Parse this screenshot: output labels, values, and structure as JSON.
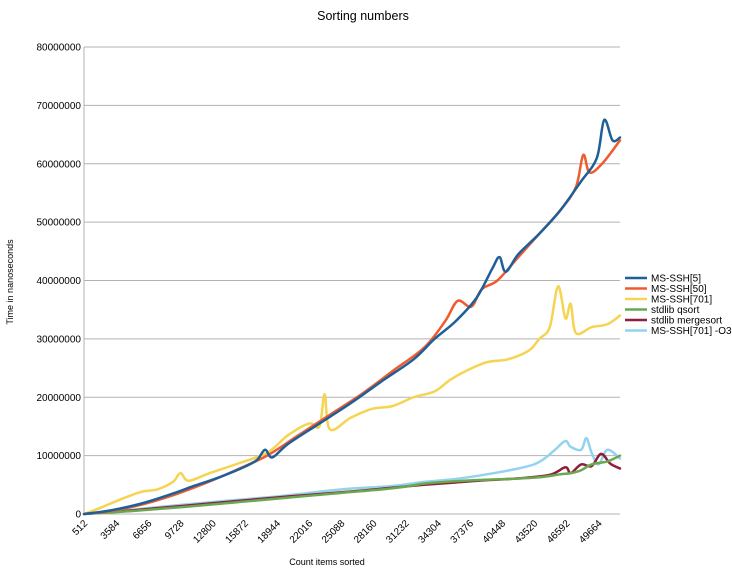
{
  "chart_data": {
    "type": "line",
    "title": "Sorting  numbers",
    "xlabel": "Count items sorted",
    "ylabel": "Time in nanoseconds",
    "ylim": [
      0,
      80000000
    ],
    "xlim": [
      512,
      51712
    ],
    "y_ticks": [
      0,
      10000000,
      20000000,
      30000000,
      40000000,
      50000000,
      60000000,
      70000000,
      80000000
    ],
    "y_tick_labels": [
      "0",
      "10000000",
      "20000000",
      "30000000",
      "40000000",
      "50000000",
      "60000000",
      "70000000",
      "80000000"
    ],
    "x_tick_labels": [
      "512",
      "3584",
      "6656",
      "9728",
      "12800",
      "15872",
      "18944",
      "22016",
      "25088",
      "28160",
      "31232",
      "34304",
      "37376",
      "40448",
      "43520",
      "46592",
      "49664"
    ],
    "grid": "horizontal",
    "legend_position": "right",
    "series": [
      {
        "name": "MS-SSH[5]",
        "color": "#1f5f99",
        "points": [
          [
            512,
            0
          ],
          [
            3000,
            600000
          ],
          [
            6000,
            1800000
          ],
          [
            9000,
            3500000
          ],
          [
            11000,
            4800000
          ],
          [
            13000,
            6000000
          ],
          [
            15500,
            7800000
          ],
          [
            17000,
            9200000
          ],
          [
            17800,
            11000000
          ],
          [
            18500,
            9700000
          ],
          [
            20000,
            12000000
          ],
          [
            23000,
            15500000
          ],
          [
            26000,
            19000000
          ],
          [
            29000,
            22800000
          ],
          [
            32000,
            26500000
          ],
          [
            34000,
            30000000
          ],
          [
            36000,
            33000000
          ],
          [
            38000,
            37000000
          ],
          [
            39500,
            42000000
          ],
          [
            40200,
            44000000
          ],
          [
            40800,
            41500000
          ],
          [
            42000,
            44500000
          ],
          [
            44000,
            48000000
          ],
          [
            46000,
            52000000
          ],
          [
            48000,
            57000000
          ],
          [
            49500,
            61000000
          ],
          [
            50200,
            67500000
          ],
          [
            51000,
            64000000
          ],
          [
            51712,
            64500000
          ]
        ]
      },
      {
        "name": "MS-SSH[50]",
        "color": "#f05b2e",
        "points": [
          [
            512,
            0
          ],
          [
            3000,
            500000
          ],
          [
            6000,
            1600000
          ],
          [
            9000,
            3200000
          ],
          [
            12000,
            5200000
          ],
          [
            15000,
            7500000
          ],
          [
            18000,
            10000000
          ],
          [
            21000,
            13500000
          ],
          [
            24000,
            17000000
          ],
          [
            27000,
            20500000
          ],
          [
            30000,
            24500000
          ],
          [
            33000,
            28500000
          ],
          [
            35000,
            33000000
          ],
          [
            36200,
            36500000
          ],
          [
            37500,
            35500000
          ],
          [
            38500,
            38500000
          ],
          [
            40000,
            40000000
          ],
          [
            42000,
            44000000
          ],
          [
            44000,
            48000000
          ],
          [
            46000,
            52000000
          ],
          [
            47500,
            56000000
          ],
          [
            48200,
            61500000
          ],
          [
            48800,
            58500000
          ],
          [
            50000,
            60000000
          ],
          [
            51712,
            64000000
          ]
        ]
      },
      {
        "name": "MS-SSH[701]",
        "color": "#f5d451",
        "points": [
          [
            512,
            0
          ],
          [
            2000,
            1000000
          ],
          [
            4000,
            2500000
          ],
          [
            6000,
            3800000
          ],
          [
            7500,
            4200000
          ],
          [
            9000,
            5500000
          ],
          [
            9728,
            7000000
          ],
          [
            10500,
            5700000
          ],
          [
            12500,
            7000000
          ],
          [
            15000,
            8500000
          ],
          [
            18000,
            10500000
          ],
          [
            20000,
            13500000
          ],
          [
            22000,
            15500000
          ],
          [
            23000,
            15000000
          ],
          [
            23500,
            20500000
          ],
          [
            24000,
            14500000
          ],
          [
            26000,
            16500000
          ],
          [
            28000,
            18000000
          ],
          [
            30000,
            18500000
          ],
          [
            32000,
            20000000
          ],
          [
            34000,
            21000000
          ],
          [
            35500,
            23000000
          ],
          [
            37000,
            24500000
          ],
          [
            39000,
            26000000
          ],
          [
            41000,
            26500000
          ],
          [
            43000,
            28000000
          ],
          [
            44000,
            30000000
          ],
          [
            45000,
            32000000
          ],
          [
            45800,
            39000000
          ],
          [
            46500,
            33500000
          ],
          [
            47000,
            36000000
          ],
          [
            47500,
            31000000
          ],
          [
            49000,
            32000000
          ],
          [
            50500,
            32500000
          ],
          [
            51712,
            34000000
          ]
        ]
      },
      {
        "name": "stdlib qsort",
        "color": "#6aa84f",
        "points": [
          [
            512,
            0
          ],
          [
            5000,
            500000
          ],
          [
            10000,
            1200000
          ],
          [
            15000,
            2000000
          ],
          [
            20000,
            2800000
          ],
          [
            25000,
            3600000
          ],
          [
            30000,
            4400000
          ],
          [
            33000,
            5200000
          ],
          [
            35000,
            5500000
          ],
          [
            38000,
            5800000
          ],
          [
            41000,
            6000000
          ],
          [
            44000,
            6300000
          ],
          [
            46000,
            6800000
          ],
          [
            47000,
            7000000
          ],
          [
            48000,
            7500000
          ],
          [
            49000,
            8500000
          ],
          [
            50500,
            9000000
          ],
          [
            51712,
            10000000
          ]
        ]
      },
      {
        "name": "stdlib mergesort",
        "color": "#8e1f3c",
        "points": [
          [
            512,
            0
          ],
          [
            5000,
            600000
          ],
          [
            10000,
            1400000
          ],
          [
            15000,
            2200000
          ],
          [
            20000,
            3000000
          ],
          [
            25000,
            3700000
          ],
          [
            30000,
            4500000
          ],
          [
            33000,
            5000000
          ],
          [
            36000,
            5400000
          ],
          [
            39000,
            5800000
          ],
          [
            42000,
            6100000
          ],
          [
            45000,
            6700000
          ],
          [
            46500,
            8000000
          ],
          [
            47000,
            7000000
          ],
          [
            48000,
            8500000
          ],
          [
            49000,
            8200000
          ],
          [
            49900,
            10300000
          ],
          [
            50800,
            8600000
          ],
          [
            51712,
            7800000
          ]
        ]
      },
      {
        "name": "MS-SSH[701] -O3",
        "color": "#93d3ef",
        "points": [
          [
            512,
            0
          ],
          [
            5000,
            700000
          ],
          [
            10000,
            1600000
          ],
          [
            15000,
            2400000
          ],
          [
            20000,
            3200000
          ],
          [
            25000,
            4200000
          ],
          [
            30000,
            4800000
          ],
          [
            33000,
            5500000
          ],
          [
            36000,
            6000000
          ],
          [
            39000,
            6800000
          ],
          [
            42000,
            7800000
          ],
          [
            43500,
            8500000
          ],
          [
            44500,
            9500000
          ],
          [
            45500,
            11000000
          ],
          [
            46500,
            12500000
          ],
          [
            47000,
            11500000
          ],
          [
            48000,
            11000000
          ],
          [
            48500,
            13000000
          ],
          [
            49000,
            10500000
          ],
          [
            49664,
            8500000
          ],
          [
            50500,
            11000000
          ],
          [
            51712,
            9500000
          ]
        ]
      }
    ]
  }
}
